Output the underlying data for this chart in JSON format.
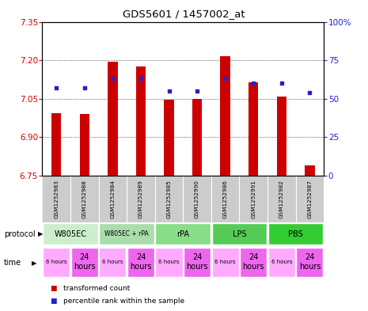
{
  "title": "GDS5601 / 1457002_at",
  "samples": [
    "GSM1252983",
    "GSM1252988",
    "GSM1252984",
    "GSM1252989",
    "GSM1252985",
    "GSM1252990",
    "GSM1252986",
    "GSM1252991",
    "GSM1252982",
    "GSM1252987"
  ],
  "bar_values": [
    6.995,
    6.99,
    7.195,
    7.175,
    7.045,
    7.05,
    7.215,
    7.115,
    7.06,
    6.79
  ],
  "blue_values": [
    57,
    57,
    63,
    63,
    55,
    55,
    63,
    60,
    60,
    54
  ],
  "ylim": [
    6.75,
    7.35
  ],
  "y2lim": [
    0,
    100
  ],
  "yticks": [
    6.75,
    6.9,
    7.05,
    7.2,
    7.35
  ],
  "y2ticks": [
    0,
    25,
    50,
    75,
    100
  ],
  "bar_color": "#CC0000",
  "blue_color": "#2222CC",
  "bar_bottom": 6.75,
  "protocol_labels": [
    "W805EC",
    "W805EC + rPA",
    "rPA",
    "LPS",
    "PBS"
  ],
  "protocol_ranges": [
    [
      0,
      2
    ],
    [
      2,
      4
    ],
    [
      4,
      6
    ],
    [
      6,
      8
    ],
    [
      8,
      10
    ]
  ],
  "protocol_colors": [
    "#cceecc",
    "#aaddaa",
    "#88dd88",
    "#55cc55",
    "#33cc33"
  ],
  "times": [
    "6 hours",
    "24\nhours",
    "6 hours",
    "24\nhours",
    "6 hours",
    "24\nhours",
    "6 hours",
    "24\nhours",
    "6 hours",
    "24\nhours"
  ],
  "time_color_6": "#ffaaff",
  "time_color_24": "#ee66ee",
  "bar_color_red": "#CC0000",
  "blue_color_legend": "#2222CC",
  "background_color": "#ffffff",
  "plot_bg_color": "#ffffff",
  "sample_bg_color": "#cccccc"
}
